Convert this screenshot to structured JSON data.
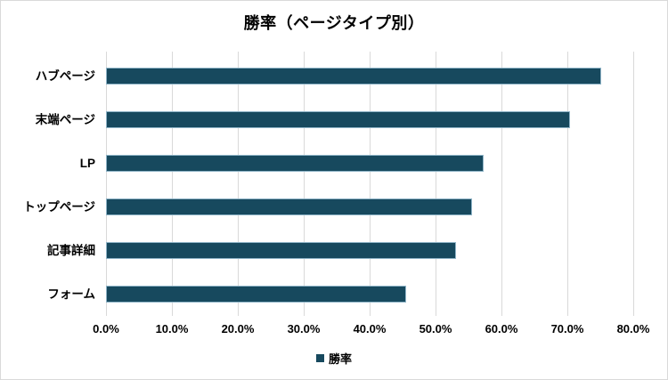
{
  "chart_data": {
    "type": "bar",
    "orientation": "horizontal",
    "title": "勝率（ページタイプ別）",
    "series_name": "勝率",
    "categories": [
      "ハブページ",
      "末端ページ",
      "LP",
      "トップページ",
      "記事詳細",
      "フォーム"
    ],
    "values": [
      75.2,
      70.4,
      57.3,
      55.6,
      53.1,
      45.5
    ],
    "xlim": [
      0,
      80
    ],
    "x_tick_labels": [
      "0.0%",
      "10.0%",
      "20.0%",
      "30.0%",
      "40.0%",
      "50.0%",
      "60.0%",
      "70.0%",
      "80.0%"
    ],
    "grid": "vertical-only",
    "legend_position": "bottom",
    "colors": {
      "bar_fill": "#17495e",
      "bar_border": "#8fb4c7",
      "gridline": "#d9d9d9",
      "chart_border": "#d9d9d9",
      "text": "#000000",
      "background": "#ffffff"
    }
  }
}
